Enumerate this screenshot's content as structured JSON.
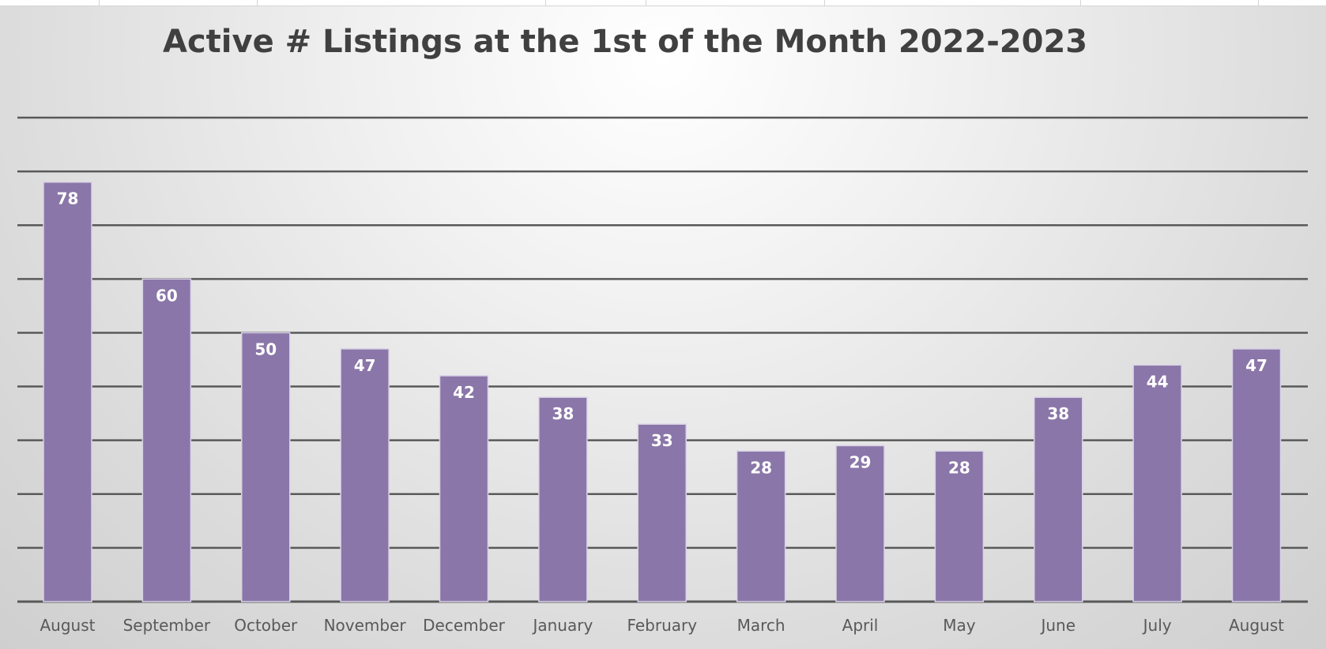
{
  "chart_data": {
    "type": "bar",
    "title": "Active # Listings at the 1st of the Month 2022-2023",
    "categories": [
      "August",
      "September",
      "October",
      "November",
      "December",
      "January",
      "February",
      "March",
      "April",
      "May",
      "June",
      "July",
      "August"
    ],
    "values": [
      78,
      60,
      50,
      47,
      42,
      38,
      33,
      28,
      29,
      28,
      38,
      44,
      47
    ],
    "xlabel": "",
    "ylabel": "",
    "ylim": [
      0,
      90
    ],
    "grid": true,
    "gridline_step": 10,
    "legend": "none",
    "bar_color": "#8a76a8",
    "bar_edge_color": "#d9d2e6",
    "gridline_color": "#595959",
    "label_color": "#ffffff",
    "title_color": "#404040",
    "tick_color": "#595959"
  }
}
